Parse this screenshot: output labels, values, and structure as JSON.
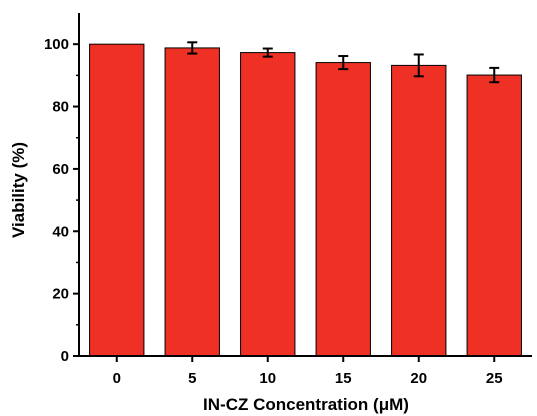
{
  "chart_data": {
    "type": "bar",
    "xlabel": "IN-CZ Concentration (μM)",
    "ylabel": "Viability (%)",
    "categories": [
      "0",
      "5",
      "10",
      "15",
      "20",
      "25"
    ],
    "values": [
      100,
      98.8,
      97.3,
      94.1,
      93.2,
      90.1
    ],
    "errors": [
      0,
      1.8,
      1.3,
      2.1,
      3.5,
      2.3
    ],
    "ylim": [
      0,
      110
    ],
    "yticks": [
      "0",
      "20",
      "40",
      "60",
      "80",
      "100"
    ],
    "grid": false,
    "legend": "none",
    "bar_color": "#ee3124",
    "bar_edge_color": "#000000"
  }
}
